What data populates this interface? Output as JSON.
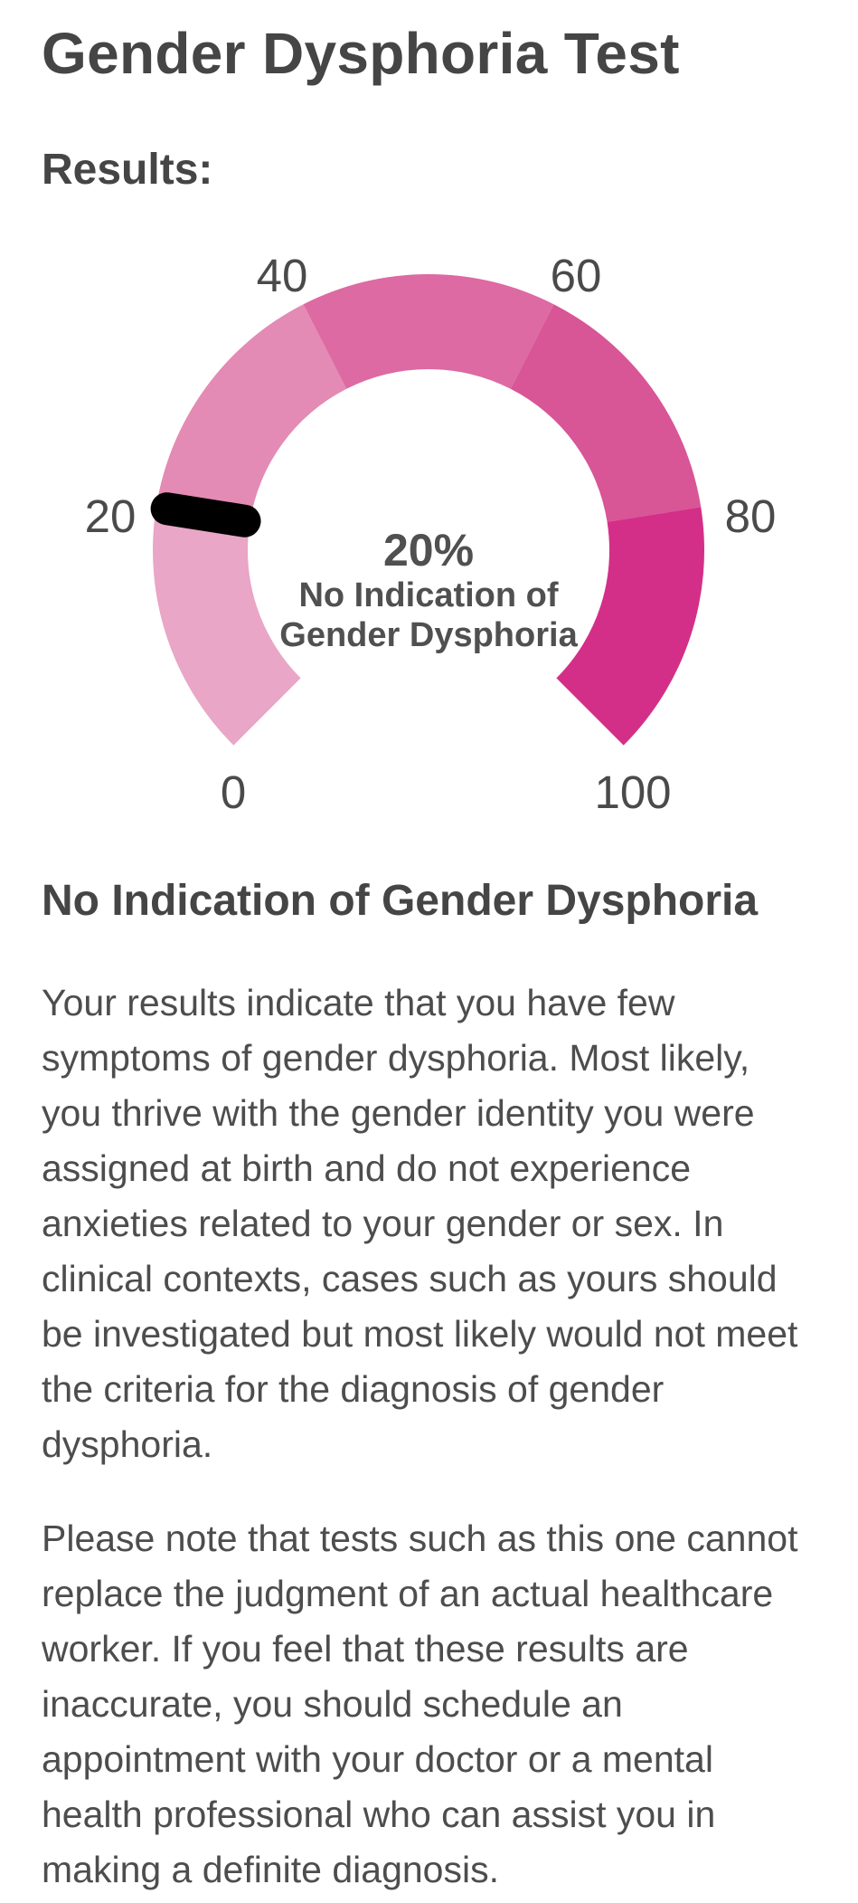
{
  "page": {
    "title": "Gender Dysphoria Test"
  },
  "results": {
    "heading": "Results:"
  },
  "gauge": {
    "value": 20,
    "value_label": "20%",
    "label_line1": "No Indication of",
    "label_line2": "Gender Dysphoria",
    "ticks": [
      "0",
      "20",
      "40",
      "60",
      "80",
      "100"
    ],
    "segment_colors": [
      "#e9a6c6",
      "#e38bb4",
      "#dd6aa2",
      "#d85596",
      "#d42f88"
    ],
    "needle_color": "#000000"
  },
  "result": {
    "title": "No Indication of Gender Dysphoria",
    "paragraph1": "Your results indicate that you have few symptoms of gender dysphoria. Most likely, you thrive with the gender identity you were assigned at birth and do not experience anxieties related to your gender or sex. In clinical contexts, cases such as yours should be investigated but most likely would not meet the criteria for the diagnosis of gender dysphoria.",
    "paragraph2": "Please note that tests such as this one cannot replace the judgment of an actual healthcare worker. If you feel that these results are inaccurate, you should schedule an appointment with your doctor or a mental health professional who can assist you in making a definite diagnosis."
  }
}
